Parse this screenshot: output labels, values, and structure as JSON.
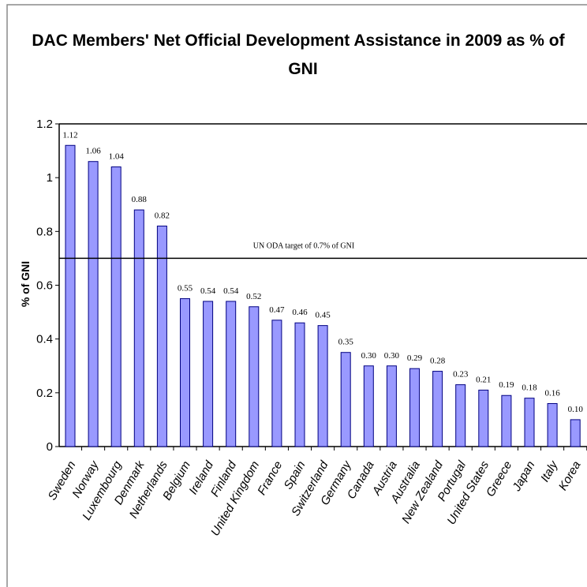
{
  "chart_data": {
    "type": "bar",
    "title_line1": "DAC Members' Net Official Development Assistance in 2009 as % of",
    "title_line2": "GNI",
    "ylabel": "% of GNI",
    "xlabel": "",
    "ylim": [
      0,
      1.2
    ],
    "yticks": [
      "0",
      "0.2",
      "0.4",
      "0.6",
      "0.8",
      "1",
      "1.2"
    ],
    "categories": [
      "Sweden",
      "Norway",
      "Luxembourg",
      "Denmark",
      "Netherlands",
      "Belgium",
      "Ireland",
      "Finland",
      "United Kingdom",
      "France",
      "Spain",
      "Switzerland",
      "Germany",
      "Canada",
      "Austria",
      "Australia",
      "New Zealand",
      "Portugal",
      "United States",
      "Greece",
      "Japan",
      "Italy",
      "Korea"
    ],
    "values": [
      1.12,
      1.06,
      1.04,
      0.88,
      0.82,
      0.55,
      0.54,
      0.54,
      0.52,
      0.47,
      0.46,
      0.45,
      0.35,
      0.3,
      0.3,
      0.29,
      0.28,
      0.23,
      0.21,
      0.19,
      0.18,
      0.16,
      0.1
    ],
    "data_labels": [
      "1.12",
      "1.06",
      "1.04",
      "0.88",
      "0.82",
      "0.55",
      "0.54",
      "0.54",
      "0.52",
      "0.47",
      "0.46",
      "0.45",
      "0.35",
      "0.30",
      "0.30",
      "0.29",
      "0.28",
      "0.23",
      "0.21",
      "0.19",
      "0.18",
      "0.16",
      "0.10"
    ],
    "target_line": {
      "value": 0.7,
      "label": "UN ODA target of 0.7% of GNI"
    },
    "grid": false,
    "legend": "none",
    "bar_color": "#9999ff",
    "bar_edge_color": "#000080"
  }
}
